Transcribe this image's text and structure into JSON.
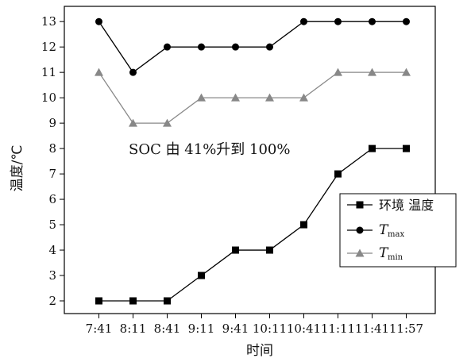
{
  "chart_data": {
    "type": "line",
    "xlabel": "时间",
    "ylabel": "温度/℃",
    "categories": [
      "7:41",
      "8:11",
      "8:41",
      "9:11",
      "9:41",
      "10:11",
      "10:41",
      "11:11",
      "11:41",
      "11:57"
    ],
    "ylim": [
      1.5,
      13.6
    ],
    "yticks": [
      2,
      3,
      4,
      5,
      6,
      7,
      8,
      9,
      10,
      11,
      12,
      13
    ],
    "grid": false,
    "legend_position": "right",
    "annotation": "SOC 由 41%升到 100%",
    "series": [
      {
        "name": "环境 温度",
        "marker": "square",
        "color": "#000000",
        "values": [
          2,
          2,
          2,
          3,
          4,
          4,
          5,
          7,
          8,
          8
        ]
      },
      {
        "name": "T",
        "name_sub": "max",
        "marker": "circle",
        "color": "#000000",
        "values": [
          13,
          11,
          12,
          12,
          12,
          12,
          13,
          13,
          13,
          13
        ]
      },
      {
        "name": "T",
        "name_sub": "min",
        "marker": "triangle",
        "color": "#888888",
        "values": [
          11,
          9,
          9,
          10,
          10,
          10,
          10,
          11,
          11,
          11
        ]
      }
    ]
  }
}
